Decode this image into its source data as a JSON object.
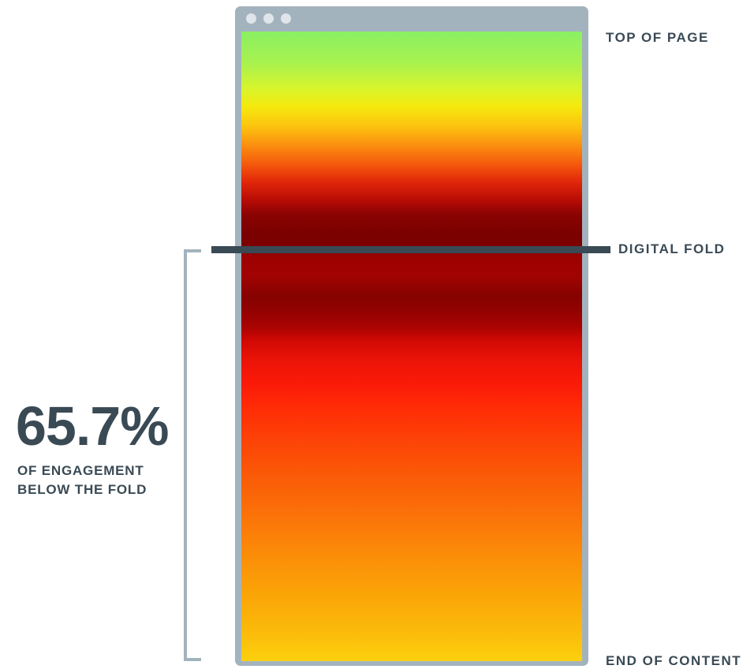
{
  "labels": {
    "top": "TOP OF PAGE",
    "fold": "DIGITAL FOLD",
    "end": "END OF CONTENT"
  },
  "stat": {
    "value": "65.7%",
    "caption_line1": "OF ENGAGEMENT",
    "caption_line2": "BELOW THE FOLD"
  },
  "window": {
    "buttons": [
      "dot",
      "dot",
      "dot"
    ]
  },
  "colors": {
    "text": "#3a4a55",
    "frame": "#a3b3be",
    "heat_low": "#8af062",
    "heat_mid": "#f6e80d",
    "heat_high": "#7a0100",
    "heat_end": "#fcd00e"
  }
}
